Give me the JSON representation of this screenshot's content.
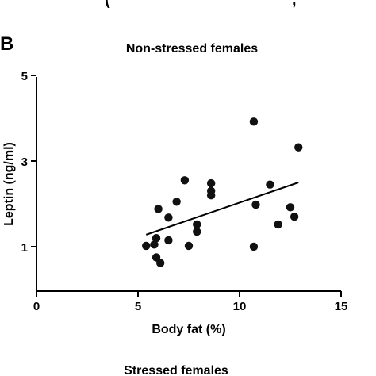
{
  "panel_label": "B",
  "top_clip_text": "(",
  "top_clip_text_right": ",",
  "bottom_title": "Stressed females",
  "chart_data": {
    "type": "scatter",
    "title": "Non-stressed females",
    "xlabel": "Body fat (%)",
    "ylabel": "Leptin (ng/ml)",
    "xlim": [
      0,
      15
    ],
    "ylim": [
      0,
      5
    ],
    "x_ticks": [
      0,
      5,
      10,
      15
    ],
    "y_ticks": [
      1,
      3,
      5
    ],
    "x_tick_labels": [
      "0",
      "5",
      "10",
      "15"
    ],
    "y_tick_labels": [
      "1",
      "3",
      "5"
    ],
    "grid": false,
    "marker_color": "#111111",
    "points": [
      {
        "x": 5.4,
        "y": 1.02
      },
      {
        "x": 5.8,
        "y": 1.05
      },
      {
        "x": 5.9,
        "y": 1.2
      },
      {
        "x": 5.9,
        "y": 0.75
      },
      {
        "x": 6.0,
        "y": 1.88
      },
      {
        "x": 6.1,
        "y": 0.62
      },
      {
        "x": 6.5,
        "y": 1.68
      },
      {
        "x": 6.5,
        "y": 1.15
      },
      {
        "x": 6.9,
        "y": 2.05
      },
      {
        "x": 7.3,
        "y": 2.55
      },
      {
        "x": 7.5,
        "y": 1.02
      },
      {
        "x": 7.9,
        "y": 1.52
      },
      {
        "x": 7.9,
        "y": 1.35
      },
      {
        "x": 8.6,
        "y": 2.48
      },
      {
        "x": 8.6,
        "y": 2.3
      },
      {
        "x": 8.6,
        "y": 2.2
      },
      {
        "x": 10.7,
        "y": 3.92
      },
      {
        "x": 10.8,
        "y": 1.98
      },
      {
        "x": 10.7,
        "y": 1.0
      },
      {
        "x": 11.5,
        "y": 2.45
      },
      {
        "x": 11.9,
        "y": 1.52
      },
      {
        "x": 12.5,
        "y": 1.92
      },
      {
        "x": 12.7,
        "y": 1.7
      },
      {
        "x": 12.9,
        "y": 3.32
      }
    ],
    "regression_line": {
      "x": [
        5.4,
        12.9
      ],
      "y": [
        1.28,
        2.5
      ]
    }
  }
}
